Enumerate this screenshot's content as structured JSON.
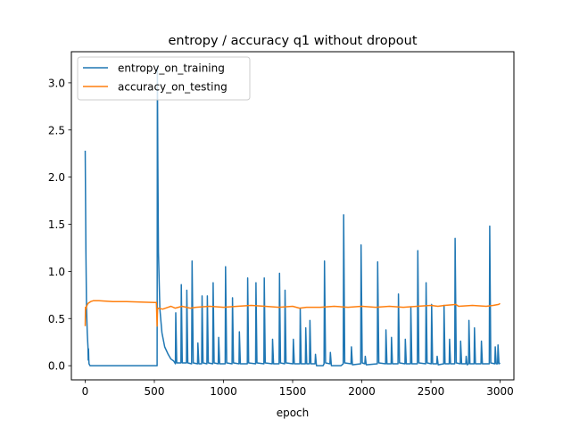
{
  "chart_data": {
    "type": "line",
    "title": "entropy / accuracy q1 without dropout",
    "xlabel": "epoch",
    "ylabel": "",
    "xlim": [
      -100,
      3100
    ],
    "ylim": [
      -0.15,
      3.33
    ],
    "xticks": [
      0,
      500,
      1000,
      1500,
      2000,
      2500,
      3000
    ],
    "yticks": [
      0.0,
      0.5,
      1.0,
      1.5,
      2.0,
      2.5,
      3.0
    ],
    "xtick_labels": [
      "0",
      "500",
      "1000",
      "1500",
      "2000",
      "2500",
      "3000"
    ],
    "ytick_labels": [
      "0.0",
      "0.5",
      "1.0",
      "1.5",
      "2.0",
      "2.5",
      "3.0"
    ],
    "grid": false,
    "legend_position": "top-left",
    "series": [
      {
        "name": "entropy_on_training",
        "color": "#1f77b4",
        "points": [
          [
            0,
            2.28
          ],
          [
            5,
            1.2
          ],
          [
            10,
            0.6
          ],
          [
            15,
            0.35
          ],
          [
            20,
            0.2
          ],
          [
            22,
            0.06
          ],
          [
            24,
            0.18
          ],
          [
            26,
            0.07
          ],
          [
            28,
            0.02
          ],
          [
            35,
            0.0
          ],
          [
            100,
            0.0
          ],
          [
            300,
            0.0
          ],
          [
            510,
            0.0
          ],
          [
            520,
            0.0
          ],
          [
            522,
            3.18
          ],
          [
            525,
            2.2
          ],
          [
            530,
            1.2
          ],
          [
            540,
            0.6
          ],
          [
            555,
            0.35
          ],
          [
            575,
            0.2
          ],
          [
            600,
            0.12
          ],
          [
            620,
            0.07
          ],
          [
            640,
            0.05
          ],
          [
            652,
            0.02
          ],
          [
            655,
            0.56
          ],
          [
            662,
            0.03
          ],
          [
            692,
            0.03
          ],
          [
            695,
            0.86
          ],
          [
            702,
            0.03
          ],
          [
            732,
            0.03
          ],
          [
            735,
            0.8
          ],
          [
            742,
            0.03
          ],
          [
            770,
            0.02
          ],
          [
            773,
            1.11
          ],
          [
            781,
            0.03
          ],
          [
            812,
            0.02
          ],
          [
            815,
            0.24
          ],
          [
            822,
            0.02
          ],
          [
            842,
            0.02
          ],
          [
            845,
            0.74
          ],
          [
            852,
            0.03
          ],
          [
            880,
            0.02
          ],
          [
            883,
            0.74
          ],
          [
            890,
            0.03
          ],
          [
            922,
            0.02
          ],
          [
            925,
            0.88
          ],
          [
            932,
            0.03
          ],
          [
            962,
            0.02
          ],
          [
            965,
            0.3
          ],
          [
            972,
            0.02
          ],
          [
            1012,
            0.02
          ],
          [
            1015,
            1.05
          ],
          [
            1023,
            0.03
          ],
          [
            1062,
            0.02
          ],
          [
            1065,
            0.72
          ],
          [
            1072,
            0.03
          ],
          [
            1112,
            0.02
          ],
          [
            1115,
            0.36
          ],
          [
            1122,
            0.02
          ],
          [
            1172,
            0.02
          ],
          [
            1175,
            0.93
          ],
          [
            1182,
            0.03
          ],
          [
            1232,
            0.02
          ],
          [
            1235,
            0.88
          ],
          [
            1242,
            0.03
          ],
          [
            1292,
            0.02
          ],
          [
            1295,
            0.93
          ],
          [
            1302,
            0.03
          ],
          [
            1352,
            0.02
          ],
          [
            1355,
            0.28
          ],
          [
            1362,
            0.02
          ],
          [
            1402,
            0.02
          ],
          [
            1405,
            0.98
          ],
          [
            1412,
            0.03
          ],
          [
            1442,
            0.02
          ],
          [
            1445,
            0.8
          ],
          [
            1452,
            0.03
          ],
          [
            1502,
            0.02
          ],
          [
            1505,
            0.28
          ],
          [
            1512,
            0.02
          ],
          [
            1552,
            0.02
          ],
          [
            1555,
            0.61
          ],
          [
            1562,
            0.02
          ],
          [
            1592,
            0.02
          ],
          [
            1595,
            0.4
          ],
          [
            1602,
            0.02
          ],
          [
            1622,
            0.02
          ],
          [
            1625,
            0.48
          ],
          [
            1632,
            0.02
          ],
          [
            1662,
            0.02
          ],
          [
            1665,
            0.12
          ],
          [
            1672,
            0.0
          ],
          [
            1720,
            0.0
          ],
          [
            1727,
            0.02
          ],
          [
            1730,
            1.11
          ],
          [
            1738,
            0.03
          ],
          [
            1770,
            0.02
          ],
          [
            1773,
            0.14
          ],
          [
            1780,
            0.0
          ],
          [
            1850,
            0.0
          ],
          [
            1866,
            0.02
          ],
          [
            1869,
            1.6
          ],
          [
            1877,
            0.03
          ],
          [
            1922,
            0.02
          ],
          [
            1925,
            0.2
          ],
          [
            1932,
            0.01
          ],
          [
            1992,
            0.02
          ],
          [
            1995,
            1.28
          ],
          [
            2003,
            0.03
          ],
          [
            2022,
            0.02
          ],
          [
            2025,
            0.1
          ],
          [
            2032,
            0.01
          ],
          [
            2112,
            0.02
          ],
          [
            2115,
            1.1
          ],
          [
            2123,
            0.03
          ],
          [
            2172,
            0.02
          ],
          [
            2175,
            0.38
          ],
          [
            2182,
            0.02
          ],
          [
            2212,
            0.02
          ],
          [
            2215,
            0.3
          ],
          [
            2222,
            0.02
          ],
          [
            2262,
            0.02
          ],
          [
            2265,
            0.76
          ],
          [
            2273,
            0.03
          ],
          [
            2312,
            0.02
          ],
          [
            2315,
            0.28
          ],
          [
            2322,
            0.02
          ],
          [
            2352,
            0.02
          ],
          [
            2355,
            0.62
          ],
          [
            2362,
            0.02
          ],
          [
            2402,
            0.02
          ],
          [
            2405,
            1.22
          ],
          [
            2413,
            0.03
          ],
          [
            2462,
            0.02
          ],
          [
            2465,
            0.88
          ],
          [
            2472,
            0.03
          ],
          [
            2502,
            0.02
          ],
          [
            2505,
            0.65
          ],
          [
            2512,
            0.02
          ],
          [
            2542,
            0.02
          ],
          [
            2545,
            0.1
          ],
          [
            2552,
            0.01
          ],
          [
            2592,
            0.02
          ],
          [
            2595,
            0.64
          ],
          [
            2602,
            0.02
          ],
          [
            2632,
            0.02
          ],
          [
            2635,
            0.28
          ],
          [
            2642,
            0.02
          ],
          [
            2672,
            0.02
          ],
          [
            2675,
            1.35
          ],
          [
            2683,
            0.03
          ],
          [
            2712,
            0.02
          ],
          [
            2715,
            0.26
          ],
          [
            2722,
            0.02
          ],
          [
            2752,
            0.02
          ],
          [
            2755,
            0.1
          ],
          [
            2762,
            0.01
          ],
          [
            2772,
            0.02
          ],
          [
            2775,
            0.48
          ],
          [
            2782,
            0.02
          ],
          [
            2812,
            0.02
          ],
          [
            2815,
            0.4
          ],
          [
            2822,
            0.02
          ],
          [
            2862,
            0.02
          ],
          [
            2865,
            0.26
          ],
          [
            2872,
            0.02
          ],
          [
            2922,
            0.02
          ],
          [
            2925,
            1.48
          ],
          [
            2933,
            0.03
          ],
          [
            2962,
            0.02
          ],
          [
            2965,
            0.2
          ],
          [
            2972,
            0.02
          ],
          [
            2982,
            0.02
          ],
          [
            2985,
            0.22
          ],
          [
            2992,
            0.02
          ],
          [
            3000,
            0.03
          ]
        ]
      },
      {
        "name": "accuracy_on_testing",
        "color": "#ff7f0e",
        "points": [
          [
            0,
            0.42
          ],
          [
            2,
            0.62
          ],
          [
            5,
            0.6
          ],
          [
            10,
            0.63
          ],
          [
            20,
            0.66
          ],
          [
            40,
            0.68
          ],
          [
            60,
            0.69
          ],
          [
            100,
            0.69
          ],
          [
            200,
            0.68
          ],
          [
            300,
            0.68
          ],
          [
            400,
            0.675
          ],
          [
            500,
            0.67
          ],
          [
            515,
            0.67
          ],
          [
            520,
            0.42
          ],
          [
            523,
            0.6
          ],
          [
            530,
            0.61
          ],
          [
            560,
            0.6
          ],
          [
            600,
            0.62
          ],
          [
            620,
            0.63
          ],
          [
            650,
            0.61
          ],
          [
            700,
            0.63
          ],
          [
            760,
            0.61
          ],
          [
            800,
            0.62
          ],
          [
            900,
            0.63
          ],
          [
            1000,
            0.62
          ],
          [
            1100,
            0.63
          ],
          [
            1200,
            0.64
          ],
          [
            1300,
            0.63
          ],
          [
            1400,
            0.62
          ],
          [
            1500,
            0.63
          ],
          [
            1550,
            0.61
          ],
          [
            1600,
            0.62
          ],
          [
            1700,
            0.62
          ],
          [
            1800,
            0.63
          ],
          [
            1900,
            0.62
          ],
          [
            2000,
            0.63
          ],
          [
            2100,
            0.62
          ],
          [
            2200,
            0.63
          ],
          [
            2300,
            0.62
          ],
          [
            2400,
            0.63
          ],
          [
            2500,
            0.64
          ],
          [
            2550,
            0.63
          ],
          [
            2600,
            0.64
          ],
          [
            2680,
            0.65
          ],
          [
            2700,
            0.63
          ],
          [
            2800,
            0.64
          ],
          [
            2900,
            0.63
          ],
          [
            2950,
            0.64
          ],
          [
            2990,
            0.65
          ],
          [
            3000,
            0.66
          ]
        ]
      }
    ]
  }
}
